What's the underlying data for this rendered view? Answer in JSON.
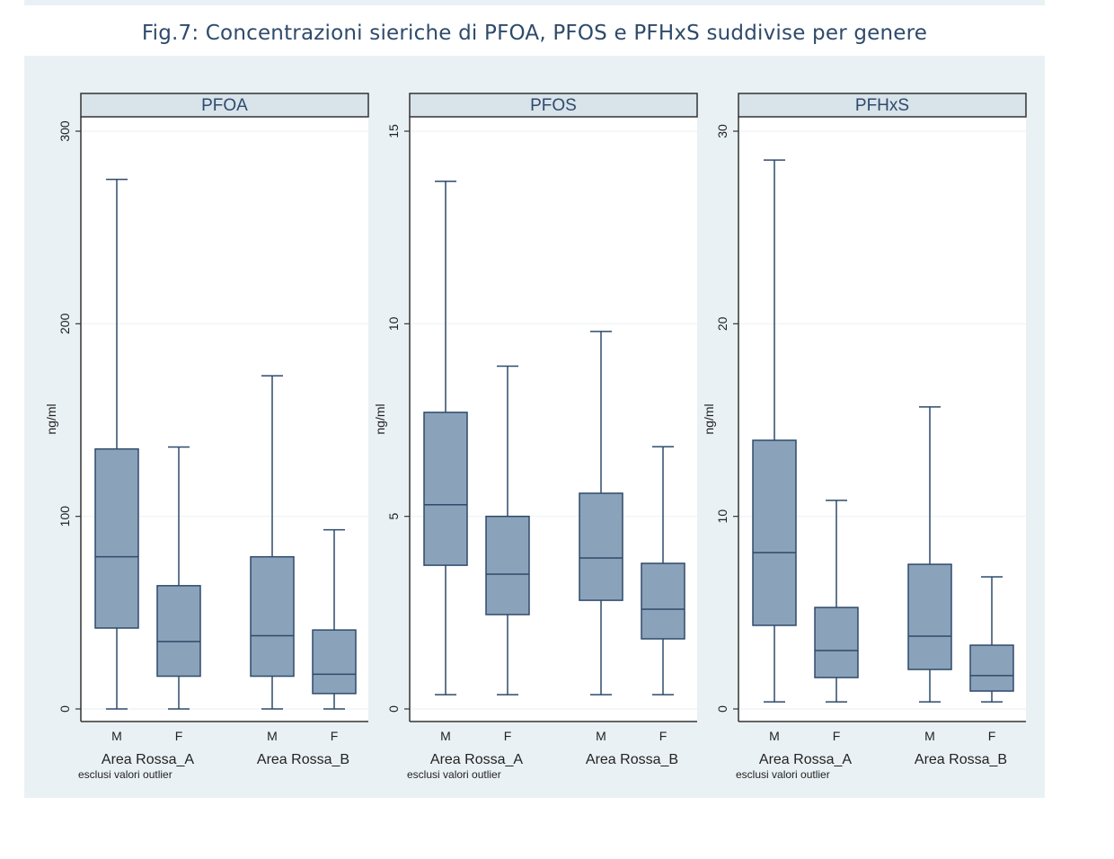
{
  "figure_title": "Fig.7: Concentrazioni sieriche di PFOA, PFOS e PFHxS suddivise per genere",
  "colors": {
    "box_fill": "#8ba3ba",
    "box_stroke": "#2e4a6b",
    "header_fill": "#d8e3ea",
    "background": "#eaf1f4",
    "grid": "#eef2f4"
  },
  "chart_data": [
    {
      "type": "box",
      "title": "PFOA",
      "ylabel": "ng/ml",
      "ylim": [
        0,
        300
      ],
      "yticks": [
        "0",
        "100",
        "200",
        "300"
      ],
      "ytick_values": [
        0,
        100,
        200,
        300
      ],
      "categories": [
        "M",
        "F",
        "M",
        "F"
      ],
      "groups": [
        "Area Rossa_A",
        "Area Rossa_B"
      ],
      "note": "esclusi valori outlier",
      "boxes": [
        {
          "group": "Area Rossa_A",
          "sex": "M",
          "min": 0,
          "q1": 42,
          "median": 79,
          "q3": 135,
          "max": 275
        },
        {
          "group": "Area Rossa_A",
          "sex": "F",
          "min": 0,
          "q1": 17,
          "median": 35,
          "q3": 64,
          "max": 136
        },
        {
          "group": "Area Rossa_B",
          "sex": "M",
          "min": 0,
          "q1": 17,
          "median": 38,
          "q3": 79,
          "max": 173
        },
        {
          "group": "Area Rossa_B",
          "sex": "F",
          "min": 0,
          "q1": 8,
          "median": 18,
          "q3": 41,
          "max": 93
        }
      ]
    },
    {
      "type": "box",
      "title": "PFOS",
      "ylabel": "ng/ml",
      "ylim": [
        0,
        15
      ],
      "yticks": [
        "0",
        "5",
        "10",
        "15"
      ],
      "ytick_values": [
        0,
        5,
        10,
        15
      ],
      "categories": [
        "M",
        "F",
        "M",
        "F"
      ],
      "groups": [
        "Area Rossa_A",
        "Area Rossa_B"
      ],
      "note": "esclusi valori outlier",
      "boxes": [
        {
          "group": "Area Rossa_A",
          "sex": "M",
          "min": 0.37,
          "q1": 3.73,
          "median": 5.3,
          "q3": 7.7,
          "max": 13.7
        },
        {
          "group": "Area Rossa_A",
          "sex": "F",
          "min": 0.37,
          "q1": 2.45,
          "median": 3.5,
          "q3": 5.0,
          "max": 8.9
        },
        {
          "group": "Area Rossa_B",
          "sex": "M",
          "min": 0.37,
          "q1": 2.82,
          "median": 3.92,
          "q3": 5.6,
          "max": 9.8
        },
        {
          "group": "Area Rossa_B",
          "sex": "F",
          "min": 0.37,
          "q1": 1.82,
          "median": 2.59,
          "q3": 3.78,
          "max": 6.81
        }
      ]
    },
    {
      "type": "box",
      "title": "PFHxS",
      "ylabel": "ng/ml",
      "ylim": [
        0,
        30
      ],
      "yticks": [
        "0",
        "10",
        "20",
        "30"
      ],
      "ytick_values": [
        0,
        10,
        20,
        30
      ],
      "categories": [
        "M",
        "F",
        "M",
        "F"
      ],
      "groups": [
        "Area Rossa_A",
        "Area Rossa_B"
      ],
      "note": "esclusi valori outlier",
      "boxes": [
        {
          "group": "Area Rossa_A",
          "sex": "M",
          "min": 0.37,
          "q1": 4.34,
          "median": 8.12,
          "q3": 13.95,
          "max": 28.5
        },
        {
          "group": "Area Rossa_A",
          "sex": "F",
          "min": 0.37,
          "q1": 1.63,
          "median": 3.03,
          "q3": 5.27,
          "max": 10.83
        },
        {
          "group": "Area Rossa_B",
          "sex": "M",
          "min": 0.37,
          "q1": 2.05,
          "median": 3.78,
          "q3": 7.51,
          "max": 15.68
        },
        {
          "group": "Area Rossa_B",
          "sex": "F",
          "min": 0.37,
          "q1": 0.93,
          "median": 1.73,
          "q3": 3.31,
          "max": 6.86
        }
      ]
    }
  ]
}
